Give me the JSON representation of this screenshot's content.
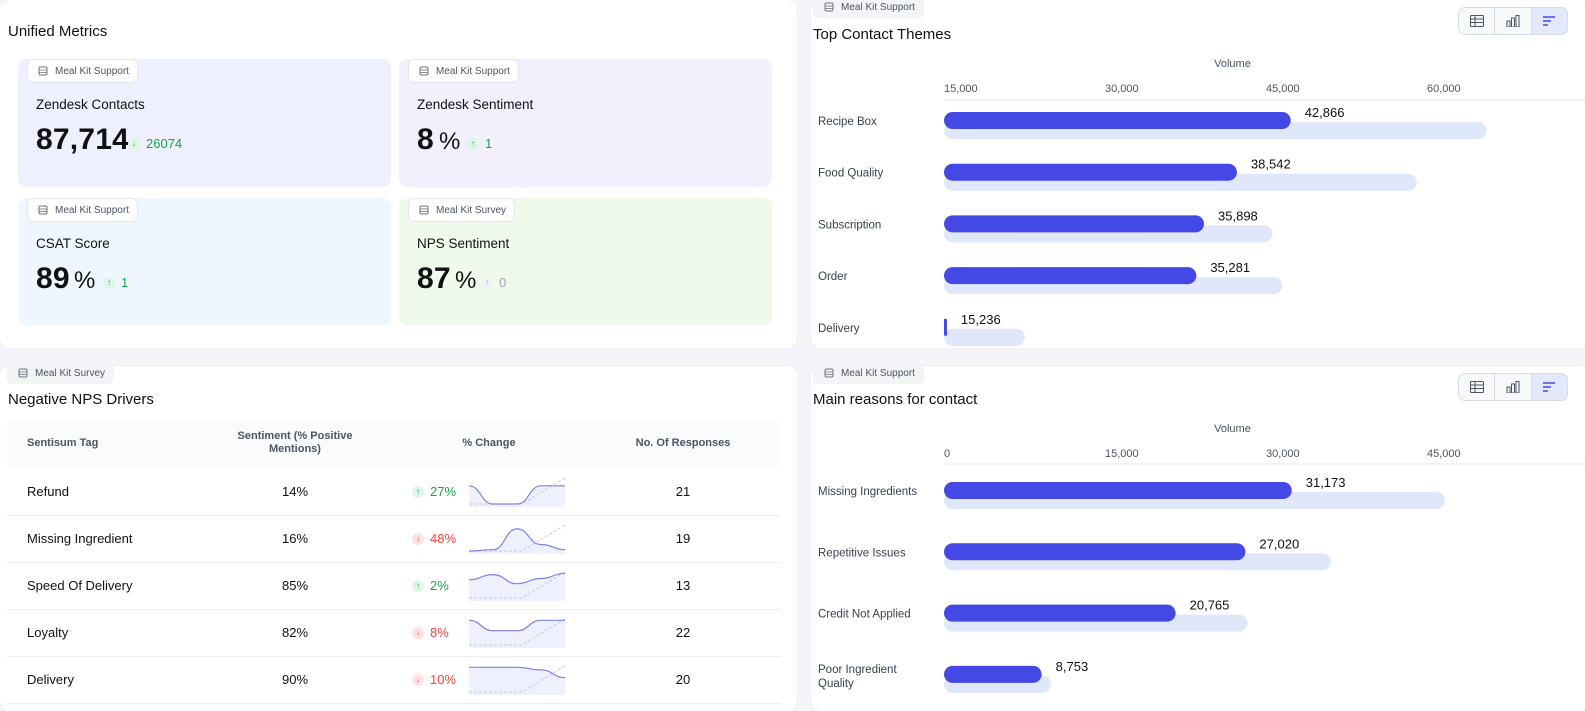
{
  "metrics": {
    "title": "Unified Metrics",
    "cards": [
      {
        "source": "Meal Kit Support",
        "label": "Zendesk Contacts",
        "value": "87,714",
        "unit": "",
        "delta": "26074",
        "delta_dir": "down",
        "delta_color": "#16a34a",
        "bg": "#eef1fd"
      },
      {
        "source": "Meal Kit Support",
        "label": "Zendesk Sentiment",
        "value": "8",
        "unit": "%",
        "delta": "1",
        "delta_dir": "up",
        "delta_color": "#16a34a",
        "bg": "#f3f0fd"
      },
      {
        "source": "Meal Kit Support",
        "label": "CSAT Score",
        "value": "89",
        "unit": "%",
        "delta": "1",
        "delta_dir": "up",
        "delta_color": "#16a34a",
        "bg": "#edf7fd"
      },
      {
        "source": "Meal Kit Survey",
        "label": "NPS Sentiment",
        "value": "87",
        "unit": "%",
        "delta": "0",
        "delta_dir": "up",
        "delta_color": "#9ca3af",
        "bg": "#effbea"
      }
    ]
  },
  "themes": {
    "source": "Meal Kit Support",
    "title": "Top Contact Themes",
    "view_toggle": [
      "table-view-icon",
      "bar-chart-icon",
      "horizontal-bar-icon"
    ],
    "chart_data": {
      "type": "bar",
      "orientation": "horizontal",
      "xlabel": "Volume",
      "xticks": [
        "15,000",
        "30,000",
        "45,000",
        "60,000"
      ],
      "xlim": [
        15000,
        67000
      ],
      "categories": [
        "Recipe Box",
        "Food Quality",
        "Subscription",
        "Order",
        "Delivery"
      ],
      "series": [
        {
          "values": [
            42866,
            38542,
            35898,
            35281,
            15236
          ],
          "labels": [
            "42,866",
            "38,542",
            "35,898",
            "35,281",
            "15,236"
          ],
          "color": "#4448e4"
        },
        {
          "values": [
            58600,
            53000,
            41400,
            42200,
            21500
          ],
          "color": "#dfe7fb"
        }
      ]
    }
  },
  "nps": {
    "source": "Meal Kit Survey",
    "title": "Negative NPS Drivers",
    "headers": {
      "tag": "Sentisum Tag",
      "sentiment": "Sentiment (% Positive Mentions)",
      "change": "% Change",
      "responses": "No. Of Responses"
    },
    "rows": [
      {
        "tag": "Refund",
        "sentiment": "14%",
        "change": "27%",
        "dir": "up",
        "responses": "21",
        "trend": [
          0.7,
          0.0,
          0.0,
          0.7,
          0.7
        ]
      },
      {
        "tag": "Missing Ingredient",
        "sentiment": "16%",
        "change": "48%",
        "dir": "down",
        "responses": "19",
        "trend": [
          0.0,
          0.05,
          0.85,
          0.25,
          0.05
        ]
      },
      {
        "tag": "Speed Of Delivery",
        "sentiment": "85%",
        "change": "2%",
        "dir": "up",
        "responses": "13",
        "trend": [
          0.7,
          0.9,
          0.55,
          0.75,
          0.95
        ]
      },
      {
        "tag": "Loyalty",
        "sentiment": "82%",
        "change": "8%",
        "dir": "down",
        "responses": "22",
        "trend": [
          0.95,
          0.55,
          0.55,
          0.95,
          0.95
        ]
      },
      {
        "tag": "Delivery",
        "sentiment": "90%",
        "change": "10%",
        "dir": "down",
        "responses": "20",
        "trend": [
          0.95,
          0.95,
          0.95,
          0.85,
          0.55
        ]
      }
    ]
  },
  "reasons": {
    "source": "Meal Kit Support",
    "title": "Main reasons for contact",
    "view_toggle": [
      "table-view-icon",
      "bar-chart-icon",
      "horizontal-bar-icon"
    ],
    "chart_data": {
      "type": "bar",
      "orientation": "horizontal",
      "xlabel": "Volume",
      "xticks": [
        "0",
        "15,000",
        "30,000",
        "45,000"
      ],
      "xlim": [
        0,
        58000
      ],
      "categories": [
        "Missing Ingredients",
        "Repetitive Issues",
        "Credit Not Applied",
        "Poor Ingredient Quality"
      ],
      "series": [
        {
          "values": [
            31173,
            27020,
            20765,
            8753
          ],
          "labels": [
            "31,173",
            "27,020",
            "20,765",
            "8,753"
          ],
          "color": "#4448e4"
        },
        {
          "values": [
            44900,
            34700,
            27200,
            9600
          ],
          "color": "#dfe7fb"
        }
      ]
    }
  }
}
